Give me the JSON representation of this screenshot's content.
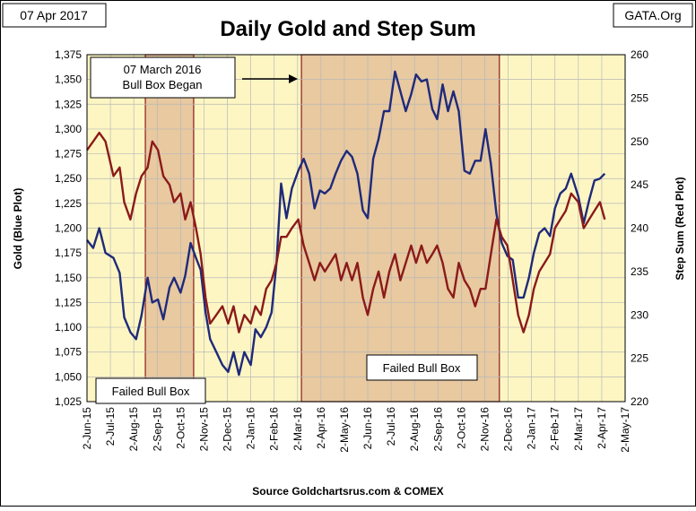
{
  "header": {
    "date": "07 Apr 2017",
    "source_tag": "GATA.Org",
    "footer": "Source Goldchartsrus.com & COMEX"
  },
  "chart_data": {
    "type": "line",
    "title": "Daily Gold and Step Sum",
    "ylabel": "Gold   (Blue Plot)",
    "y2label": "Step Sum   (Red Plot)",
    "ylim": [
      1025,
      1375
    ],
    "y2lim": [
      220,
      260
    ],
    "yticks": [
      "1,025",
      "1,050",
      "1,075",
      "1,100",
      "1,125",
      "1,150",
      "1,175",
      "1,200",
      "1,225",
      "1,250",
      "1,275",
      "1,300",
      "1,325",
      "1,350",
      "1,375"
    ],
    "y2ticks": [
      "220",
      "225",
      "230",
      "235",
      "240",
      "245",
      "250",
      "255",
      "260"
    ],
    "xticks": [
      "2-Jun-15",
      "2-Jul-15",
      "2-Aug-15",
      "2-Sep-15",
      "2-Oct-15",
      "2-Nov-15",
      "2-Dec-15",
      "2-Jan-16",
      "2-Feb-16",
      "2-Mar-16",
      "2-Apr-16",
      "2-May-16",
      "2-Jun-16",
      "2-Jul-16",
      "2-Aug-16",
      "2-Sep-16",
      "2-Oct-16",
      "2-Nov-16",
      "2-Dec-16",
      "2-Jan-17",
      "2-Feb-17",
      "2-Mar-17",
      "2-Apr-17",
      "2-May-17"
    ],
    "grid": true,
    "colors": {
      "gold": "#1f2a7a",
      "step_sum": "#8b1a1a",
      "plot_bg": "#fdf6c3",
      "box_fill": "#e8c9a0",
      "box_edge": "#8b1a1a"
    },
    "annotations": {
      "bull_box": "07 March 2016\nBull Box Began",
      "failed_box_1": "Failed Bull Box",
      "failed_box_2": "Failed Bull Box"
    },
    "shaded_regions": [
      {
        "from": "2015-08-17",
        "to": "2015-10-19"
      },
      {
        "from": "2016-03-07",
        "to": "2016-11-21"
      }
    ],
    "series": [
      {
        "name": "Gold",
        "axis": "left",
        "points": [
          [
            "2015-06-02",
            1188
          ],
          [
            "2015-06-10",
            1180
          ],
          [
            "2015-06-18",
            1200
          ],
          [
            "2015-06-26",
            1175
          ],
          [
            "2015-07-06",
            1170
          ],
          [
            "2015-07-14",
            1155
          ],
          [
            "2015-07-20",
            1110
          ],
          [
            "2015-07-28",
            1095
          ],
          [
            "2015-08-05",
            1088
          ],
          [
            "2015-08-12",
            1112
          ],
          [
            "2015-08-20",
            1150
          ],
          [
            "2015-08-26",
            1125
          ],
          [
            "2015-09-03",
            1128
          ],
          [
            "2015-09-10",
            1108
          ],
          [
            "2015-09-18",
            1140
          ],
          [
            "2015-09-24",
            1150
          ],
          [
            "2015-10-02",
            1135
          ],
          [
            "2015-10-08",
            1152
          ],
          [
            "2015-10-15",
            1185
          ],
          [
            "2015-10-22",
            1170
          ],
          [
            "2015-10-28",
            1158
          ],
          [
            "2015-11-04",
            1115
          ],
          [
            "2015-11-10",
            1088
          ],
          [
            "2015-11-18",
            1075
          ],
          [
            "2015-11-26",
            1062
          ],
          [
            "2015-12-03",
            1055
          ],
          [
            "2015-12-10",
            1075
          ],
          [
            "2015-12-17",
            1052
          ],
          [
            "2015-12-24",
            1075
          ],
          [
            "2016-01-02",
            1062
          ],
          [
            "2016-01-08",
            1098
          ],
          [
            "2016-01-15",
            1090
          ],
          [
            "2016-01-22",
            1100
          ],
          [
            "2016-01-29",
            1115
          ],
          [
            "2016-02-05",
            1165
          ],
          [
            "2016-02-11",
            1245
          ],
          [
            "2016-02-18",
            1210
          ],
          [
            "2016-02-25",
            1240
          ],
          [
            "2016-03-03",
            1258
          ],
          [
            "2016-03-10",
            1270
          ],
          [
            "2016-03-17",
            1255
          ],
          [
            "2016-03-24",
            1220
          ],
          [
            "2016-03-31",
            1238
          ],
          [
            "2016-04-07",
            1235
          ],
          [
            "2016-04-14",
            1240
          ],
          [
            "2016-04-21",
            1255
          ],
          [
            "2016-04-28",
            1268
          ],
          [
            "2016-05-05",
            1278
          ],
          [
            "2016-05-12",
            1272
          ],
          [
            "2016-05-19",
            1255
          ],
          [
            "2016-05-26",
            1218
          ],
          [
            "2016-06-02",
            1210
          ],
          [
            "2016-06-09",
            1270
          ],
          [
            "2016-06-16",
            1290
          ],
          [
            "2016-06-23",
            1318
          ],
          [
            "2016-06-30",
            1318
          ],
          [
            "2016-07-07",
            1358
          ],
          [
            "2016-07-14",
            1338
          ],
          [
            "2016-07-21",
            1318
          ],
          [
            "2016-07-28",
            1335
          ],
          [
            "2016-08-04",
            1355
          ],
          [
            "2016-08-11",
            1348
          ],
          [
            "2016-08-18",
            1350
          ],
          [
            "2016-08-25",
            1320
          ],
          [
            "2016-09-01",
            1310
          ],
          [
            "2016-09-08",
            1345
          ],
          [
            "2016-09-15",
            1318
          ],
          [
            "2016-09-22",
            1338
          ],
          [
            "2016-09-29",
            1318
          ],
          [
            "2016-10-06",
            1258
          ],
          [
            "2016-10-13",
            1255
          ],
          [
            "2016-10-20",
            1268
          ],
          [
            "2016-10-27",
            1268
          ],
          [
            "2016-11-03",
            1300
          ],
          [
            "2016-11-10",
            1265
          ],
          [
            "2016-11-17",
            1215
          ],
          [
            "2016-11-24",
            1185
          ],
          [
            "2016-12-01",
            1172
          ],
          [
            "2016-12-08",
            1168
          ],
          [
            "2016-12-15",
            1130
          ],
          [
            "2016-12-22",
            1130
          ],
          [
            "2016-12-29",
            1150
          ],
          [
            "2017-01-05",
            1175
          ],
          [
            "2017-01-12",
            1195
          ],
          [
            "2017-01-19",
            1200
          ],
          [
            "2017-01-26",
            1192
          ],
          [
            "2017-02-02",
            1220
          ],
          [
            "2017-02-09",
            1235
          ],
          [
            "2017-02-16",
            1240
          ],
          [
            "2017-02-23",
            1255
          ],
          [
            "2017-03-02",
            1232
          ],
          [
            "2017-03-09",
            1205
          ],
          [
            "2017-03-16",
            1228
          ],
          [
            "2017-03-23",
            1248
          ],
          [
            "2017-03-30",
            1250
          ],
          [
            "2017-04-06",
            1255
          ]
        ]
      },
      {
        "name": "Step Sum",
        "axis": "right",
        "points": [
          [
            "2015-06-02",
            249
          ],
          [
            "2015-06-10",
            250
          ],
          [
            "2015-06-18",
            251
          ],
          [
            "2015-06-26",
            250
          ],
          [
            "2015-07-06",
            246
          ],
          [
            "2015-07-14",
            247
          ],
          [
            "2015-07-20",
            243
          ],
          [
            "2015-07-28",
            241
          ],
          [
            "2015-08-05",
            244
          ],
          [
            "2015-08-12",
            246
          ],
          [
            "2015-08-20",
            247
          ],
          [
            "2015-08-26",
            250
          ],
          [
            "2015-09-03",
            249
          ],
          [
            "2015-09-10",
            246
          ],
          [
            "2015-09-18",
            245
          ],
          [
            "2015-09-24",
            243
          ],
          [
            "2015-10-02",
            244
          ],
          [
            "2015-10-08",
            241
          ],
          [
            "2015-10-15",
            243
          ],
          [
            "2015-10-22",
            240
          ],
          [
            "2015-10-28",
            237
          ],
          [
            "2015-11-04",
            232
          ],
          [
            "2015-11-10",
            229
          ],
          [
            "2015-11-18",
            230
          ],
          [
            "2015-11-26",
            231
          ],
          [
            "2015-12-03",
            229
          ],
          [
            "2015-12-10",
            231
          ],
          [
            "2015-12-17",
            228
          ],
          [
            "2015-12-24",
            230
          ],
          [
            "2016-01-02",
            229
          ],
          [
            "2016-01-08",
            231
          ],
          [
            "2016-01-15",
            230
          ],
          [
            "2016-01-22",
            233
          ],
          [
            "2016-01-29",
            234
          ],
          [
            "2016-02-05",
            236
          ],
          [
            "2016-02-11",
            239
          ],
          [
            "2016-02-18",
            239
          ],
          [
            "2016-02-25",
            240
          ],
          [
            "2016-03-03",
            241
          ],
          [
            "2016-03-10",
            238
          ],
          [
            "2016-03-17",
            236
          ],
          [
            "2016-03-24",
            234
          ],
          [
            "2016-03-31",
            236
          ],
          [
            "2016-04-07",
            235
          ],
          [
            "2016-04-14",
            236
          ],
          [
            "2016-04-21",
            237
          ],
          [
            "2016-04-28",
            234
          ],
          [
            "2016-05-05",
            236
          ],
          [
            "2016-05-12",
            234
          ],
          [
            "2016-05-19",
            236
          ],
          [
            "2016-05-26",
            232
          ],
          [
            "2016-06-02",
            230
          ],
          [
            "2016-06-09",
            233
          ],
          [
            "2016-06-16",
            235
          ],
          [
            "2016-06-23",
            232
          ],
          [
            "2016-06-30",
            235
          ],
          [
            "2016-07-07",
            237
          ],
          [
            "2016-07-14",
            234
          ],
          [
            "2016-07-21",
            236
          ],
          [
            "2016-07-28",
            238
          ],
          [
            "2016-08-04",
            236
          ],
          [
            "2016-08-11",
            238
          ],
          [
            "2016-08-18",
            236
          ],
          [
            "2016-08-25",
            237
          ],
          [
            "2016-09-01",
            238
          ],
          [
            "2016-09-08",
            236
          ],
          [
            "2016-09-15",
            233
          ],
          [
            "2016-09-22",
            232
          ],
          [
            "2016-09-29",
            236
          ],
          [
            "2016-10-06",
            234
          ],
          [
            "2016-10-13",
            233
          ],
          [
            "2016-10-20",
            231
          ],
          [
            "2016-10-27",
            233
          ],
          [
            "2016-11-03",
            233
          ],
          [
            "2016-11-10",
            237
          ],
          [
            "2016-11-17",
            241
          ],
          [
            "2016-11-24",
            239
          ],
          [
            "2016-12-01",
            238
          ],
          [
            "2016-12-08",
            234
          ],
          [
            "2016-12-15",
            230
          ],
          [
            "2016-12-22",
            228
          ],
          [
            "2016-12-29",
            230
          ],
          [
            "2017-01-05",
            233
          ],
          [
            "2017-01-12",
            235
          ],
          [
            "2017-01-19",
            236
          ],
          [
            "2017-01-26",
            237
          ],
          [
            "2017-02-02",
            240
          ],
          [
            "2017-02-09",
            241
          ],
          [
            "2017-02-16",
            242
          ],
          [
            "2017-02-23",
            244
          ],
          [
            "2017-03-02",
            243
          ],
          [
            "2017-03-09",
            240
          ],
          [
            "2017-03-16",
            241
          ],
          [
            "2017-03-23",
            242
          ],
          [
            "2017-03-30",
            243
          ],
          [
            "2017-04-06",
            241
          ]
        ]
      }
    ]
  }
}
